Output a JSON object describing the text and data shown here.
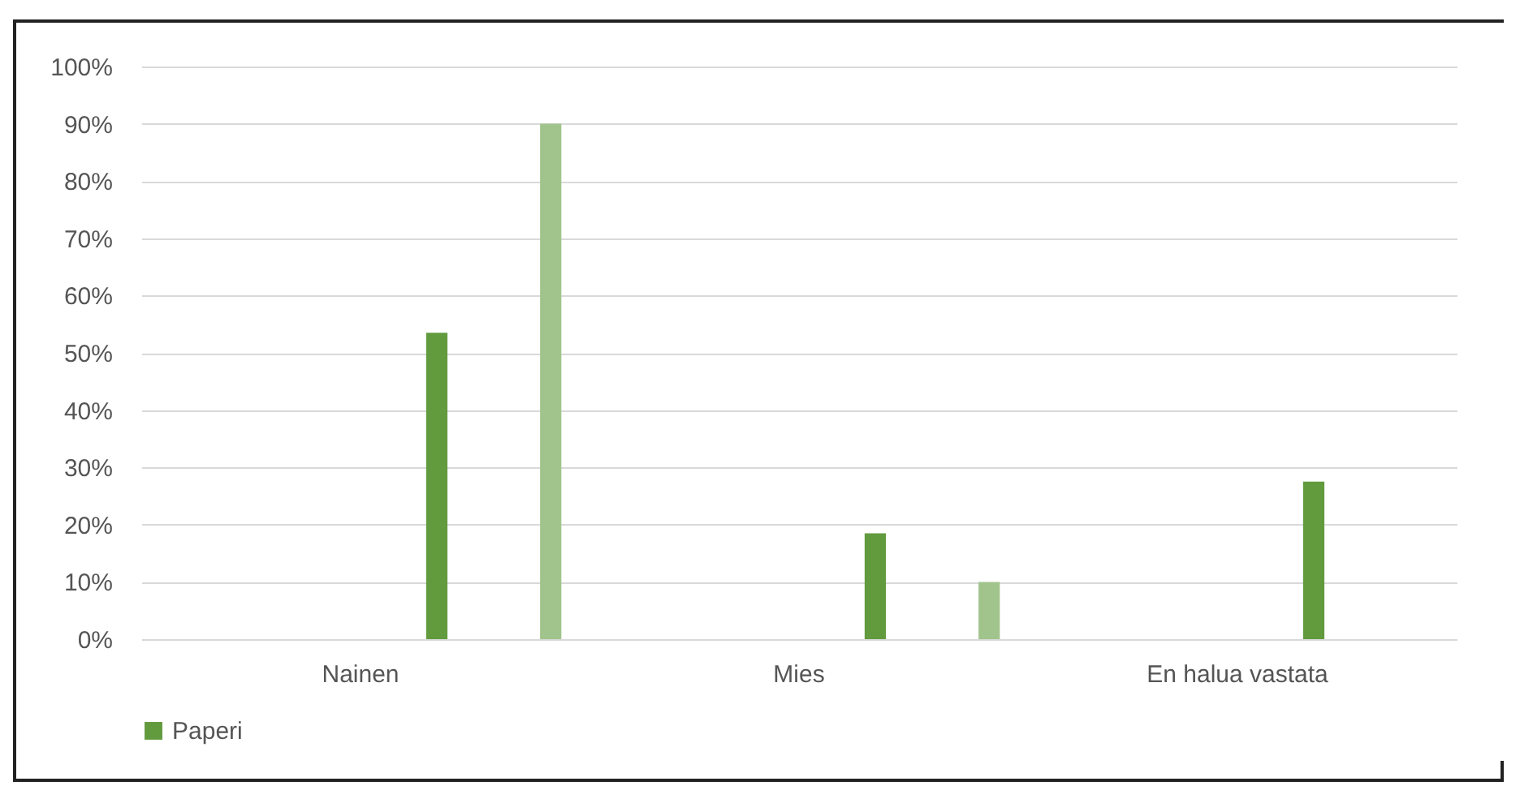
{
  "chart_data": {
    "type": "bar",
    "categories": [
      "Nainen",
      "Mies",
      "En halua vastata"
    ],
    "series": [
      {
        "name": "Paperi",
        "color": "#629a3e",
        "values": [
          53.5,
          18.5,
          27.5
        ]
      },
      {
        "color": "#a1c48c",
        "values": [
          90,
          10,
          0
        ]
      }
    ],
    "ylim": [
      0,
      100
    ],
    "yticks": [
      {
        "value": 0,
        "label": "0%"
      },
      {
        "value": 10,
        "label": "10%"
      },
      {
        "value": 20,
        "label": "20%"
      },
      {
        "value": 30,
        "label": "30%"
      },
      {
        "value": 40,
        "label": "40%"
      },
      {
        "value": 50,
        "label": "50%"
      },
      {
        "value": 60,
        "label": "60%"
      },
      {
        "value": 70,
        "label": "70%"
      },
      {
        "value": 80,
        "label": "80%"
      },
      {
        "value": 90,
        "label": "90%"
      },
      {
        "value": 100,
        "label": "100%"
      }
    ],
    "grid": "y",
    "legend": "bottom"
  }
}
